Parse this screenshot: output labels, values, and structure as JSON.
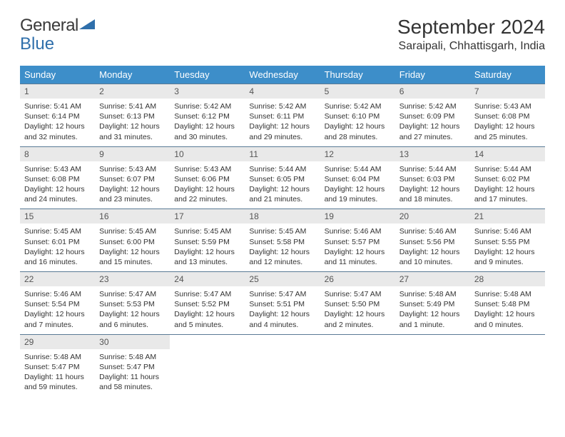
{
  "logo": {
    "part1": "General",
    "part2": "Blue"
  },
  "month_title": "September 2024",
  "location": "Saraipali, Chhattisgarh, India",
  "colors": {
    "header_bg": "#3d8ec9",
    "header_text": "#ffffff",
    "daynum_bg": "#e9e9e9",
    "border": "#5a7a95",
    "logo_blue": "#2f6fab",
    "body_text": "#333333",
    "background": "#ffffff"
  },
  "typography": {
    "month_fontsize_pt": 21,
    "location_fontsize_pt": 12,
    "weekday_fontsize_pt": 10,
    "daynum_fontsize_pt": 9,
    "body_fontsize_pt": 8
  },
  "layout": {
    "columns": 7,
    "rows": 5,
    "aspect_w": 792,
    "aspect_h": 612
  },
  "weekdays": [
    "Sunday",
    "Monday",
    "Tuesday",
    "Wednesday",
    "Thursday",
    "Friday",
    "Saturday"
  ],
  "days": [
    {
      "n": 1,
      "sr": "5:41 AM",
      "ss": "6:14 PM",
      "dl": "12 hours and 32 minutes."
    },
    {
      "n": 2,
      "sr": "5:41 AM",
      "ss": "6:13 PM",
      "dl": "12 hours and 31 minutes."
    },
    {
      "n": 3,
      "sr": "5:42 AM",
      "ss": "6:12 PM",
      "dl": "12 hours and 30 minutes."
    },
    {
      "n": 4,
      "sr": "5:42 AM",
      "ss": "6:11 PM",
      "dl": "12 hours and 29 minutes."
    },
    {
      "n": 5,
      "sr": "5:42 AM",
      "ss": "6:10 PM",
      "dl": "12 hours and 28 minutes."
    },
    {
      "n": 6,
      "sr": "5:42 AM",
      "ss": "6:09 PM",
      "dl": "12 hours and 27 minutes."
    },
    {
      "n": 7,
      "sr": "5:43 AM",
      "ss": "6:08 PM",
      "dl": "12 hours and 25 minutes."
    },
    {
      "n": 8,
      "sr": "5:43 AM",
      "ss": "6:08 PM",
      "dl": "12 hours and 24 minutes."
    },
    {
      "n": 9,
      "sr": "5:43 AM",
      "ss": "6:07 PM",
      "dl": "12 hours and 23 minutes."
    },
    {
      "n": 10,
      "sr": "5:43 AM",
      "ss": "6:06 PM",
      "dl": "12 hours and 22 minutes."
    },
    {
      "n": 11,
      "sr": "5:44 AM",
      "ss": "6:05 PM",
      "dl": "12 hours and 21 minutes."
    },
    {
      "n": 12,
      "sr": "5:44 AM",
      "ss": "6:04 PM",
      "dl": "12 hours and 19 minutes."
    },
    {
      "n": 13,
      "sr": "5:44 AM",
      "ss": "6:03 PM",
      "dl": "12 hours and 18 minutes."
    },
    {
      "n": 14,
      "sr": "5:44 AM",
      "ss": "6:02 PM",
      "dl": "12 hours and 17 minutes."
    },
    {
      "n": 15,
      "sr": "5:45 AM",
      "ss": "6:01 PM",
      "dl": "12 hours and 16 minutes."
    },
    {
      "n": 16,
      "sr": "5:45 AM",
      "ss": "6:00 PM",
      "dl": "12 hours and 15 minutes."
    },
    {
      "n": 17,
      "sr": "5:45 AM",
      "ss": "5:59 PM",
      "dl": "12 hours and 13 minutes."
    },
    {
      "n": 18,
      "sr": "5:45 AM",
      "ss": "5:58 PM",
      "dl": "12 hours and 12 minutes."
    },
    {
      "n": 19,
      "sr": "5:46 AM",
      "ss": "5:57 PM",
      "dl": "12 hours and 11 minutes."
    },
    {
      "n": 20,
      "sr": "5:46 AM",
      "ss": "5:56 PM",
      "dl": "12 hours and 10 minutes."
    },
    {
      "n": 21,
      "sr": "5:46 AM",
      "ss": "5:55 PM",
      "dl": "12 hours and 9 minutes."
    },
    {
      "n": 22,
      "sr": "5:46 AM",
      "ss": "5:54 PM",
      "dl": "12 hours and 7 minutes."
    },
    {
      "n": 23,
      "sr": "5:47 AM",
      "ss": "5:53 PM",
      "dl": "12 hours and 6 minutes."
    },
    {
      "n": 24,
      "sr": "5:47 AM",
      "ss": "5:52 PM",
      "dl": "12 hours and 5 minutes."
    },
    {
      "n": 25,
      "sr": "5:47 AM",
      "ss": "5:51 PM",
      "dl": "12 hours and 4 minutes."
    },
    {
      "n": 26,
      "sr": "5:47 AM",
      "ss": "5:50 PM",
      "dl": "12 hours and 2 minutes."
    },
    {
      "n": 27,
      "sr": "5:48 AM",
      "ss": "5:49 PM",
      "dl": "12 hours and 1 minute."
    },
    {
      "n": 28,
      "sr": "5:48 AM",
      "ss": "5:48 PM",
      "dl": "12 hours and 0 minutes."
    },
    {
      "n": 29,
      "sr": "5:48 AM",
      "ss": "5:47 PM",
      "dl": "11 hours and 59 minutes."
    },
    {
      "n": 30,
      "sr": "5:48 AM",
      "ss": "5:47 PM",
      "dl": "11 hours and 58 minutes."
    }
  ],
  "labels": {
    "sunrise": "Sunrise: ",
    "sunset": "Sunset: ",
    "daylight": "Daylight: "
  }
}
